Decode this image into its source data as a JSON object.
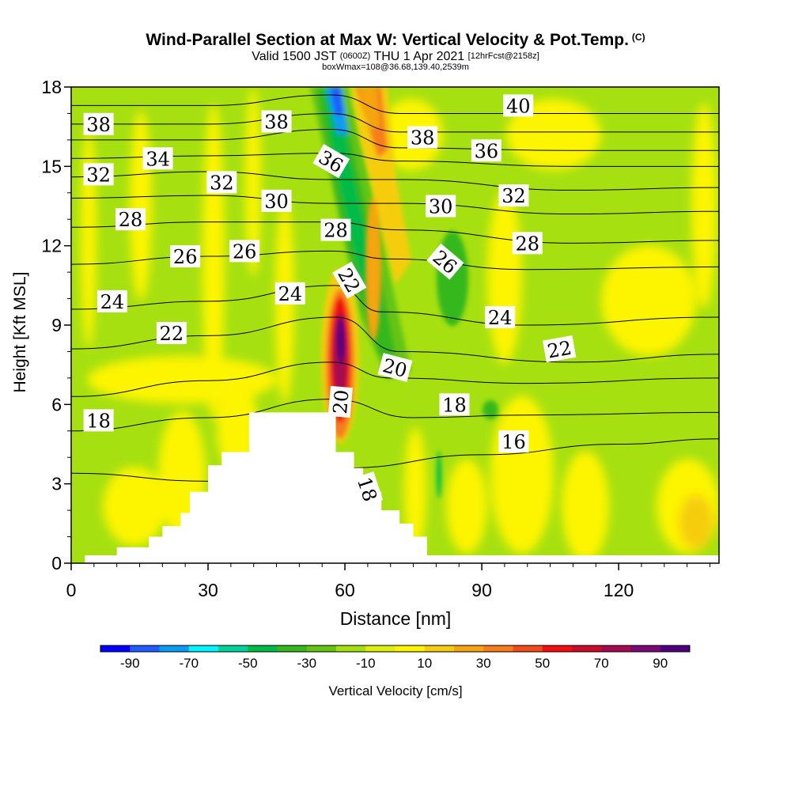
{
  "chart_data": {
    "type": "heatmap",
    "title": "Wind-Parallel Section at Max W: Vertical Velocity & Pot.Temp.",
    "title_mark": "(C)",
    "subtitle_prefix": "Valid 1500 JST",
    "subtitle_utc": "(0600Z)",
    "subtitle_day": "THU 1 Apr 2021",
    "subtitle_fcst": "[12hrFcst@2158z]",
    "subtitle_box": "boxWmax=108@36.68,139.40,2539m",
    "xlabel": "Distance [nm]",
    "ylabel": "Height [Kft MSL]",
    "xlim": [
      0,
      142
    ],
    "ylim": [
      0,
      18
    ],
    "x_ticks": [
      0,
      30,
      60,
      90,
      120
    ],
    "y_ticks": [
      0,
      3,
      6,
      9,
      12,
      15,
      18
    ],
    "colorbar": {
      "label": "Vertical Velocity [cm/s]",
      "tick_values": [
        -90,
        -70,
        -50,
        -30,
        -10,
        10,
        30,
        50,
        70,
        90
      ],
      "colors": [
        "#0000ff",
        "#1f5cff",
        "#0a9cf2",
        "#00f5ff",
        "#00d49a",
        "#00bb46",
        "#34b81e",
        "#64c414",
        "#a6e010",
        "#dfef0d",
        "#fdf400",
        "#f6cd0d",
        "#f5a510",
        "#f77d1b",
        "#f04b18",
        "#f00e0e",
        "#c90c2a",
        "#a40b4e",
        "#7a0876",
        "#4f007e"
      ]
    },
    "theta_contours_C": [
      {
        "value": 16,
        "points": [
          [
            0,
            3.4
          ],
          [
            30,
            3.1
          ],
          [
            60,
            3.6
          ],
          [
            90,
            4.1
          ],
          [
            120,
            4.5
          ],
          [
            142,
            4.7
          ]
        ]
      },
      {
        "value": 18,
        "points": [
          [
            0,
            5.0
          ],
          [
            30,
            5.5
          ],
          [
            57,
            6.2
          ],
          [
            75,
            5.5
          ],
          [
            100,
            5.6
          ],
          [
            142,
            5.7
          ]
        ]
      },
      {
        "value": 20,
        "points": [
          [
            0,
            6.3
          ],
          [
            30,
            6.9
          ],
          [
            57,
            7.6
          ],
          [
            70,
            7.0
          ],
          [
            100,
            6.8
          ],
          [
            142,
            7.0
          ]
        ]
      },
      {
        "value": 22,
        "points": [
          [
            0,
            8.1
          ],
          [
            30,
            8.6
          ],
          [
            58,
            9.3
          ],
          [
            72,
            8.0
          ],
          [
            110,
            7.6
          ],
          [
            142,
            7.9
          ]
        ]
      },
      {
        "value": 24,
        "points": [
          [
            0,
            9.6
          ],
          [
            30,
            9.9
          ],
          [
            58,
            10.5
          ],
          [
            68,
            9.5
          ],
          [
            100,
            9.0
          ],
          [
            142,
            9.3
          ]
        ]
      },
      {
        "value": 26,
        "points": [
          [
            0,
            11.3
          ],
          [
            30,
            11.6
          ],
          [
            57,
            11.8
          ],
          [
            70,
            11.5
          ],
          [
            100,
            11.1
          ],
          [
            142,
            11.2
          ]
        ]
      },
      {
        "value": 28,
        "points": [
          [
            0,
            12.7
          ],
          [
            30,
            12.9
          ],
          [
            57,
            12.9
          ],
          [
            72,
            12.6
          ],
          [
            110,
            12.1
          ],
          [
            142,
            12.2
          ]
        ]
      },
      {
        "value": 30,
        "points": [
          [
            0,
            13.8
          ],
          [
            30,
            13.9
          ],
          [
            57,
            13.6
          ],
          [
            72,
            13.6
          ],
          [
            110,
            13.2
          ],
          [
            142,
            13.3
          ]
        ]
      },
      {
        "value": 32,
        "points": [
          [
            0,
            14.6
          ],
          [
            30,
            14.8
          ],
          [
            57,
            14.5
          ],
          [
            72,
            14.5
          ],
          [
            110,
            14.1
          ],
          [
            142,
            14.2
          ]
        ]
      },
      {
        "value": 34,
        "points": [
          [
            0,
            15.3
          ],
          [
            30,
            15.4
          ],
          [
            57,
            15.5
          ],
          [
            72,
            15.2
          ],
          [
            110,
            15.0
          ],
          [
            142,
            15.0
          ]
        ]
      },
      {
        "value": 36,
        "points": [
          [
            0,
            16.0
          ],
          [
            30,
            16.0
          ],
          [
            57,
            16.4
          ],
          [
            72,
            15.7
          ],
          [
            110,
            15.6
          ],
          [
            142,
            15.6
          ]
        ]
      },
      {
        "value": 38,
        "points": [
          [
            0,
            16.6
          ],
          [
            30,
            16.6
          ],
          [
            57,
            17.0
          ],
          [
            72,
            16.3
          ],
          [
            110,
            16.3
          ],
          [
            142,
            16.3
          ]
        ]
      },
      {
        "value": 40,
        "points": [
          [
            0,
            17.3
          ],
          [
            30,
            17.3
          ],
          [
            57,
            17.7
          ],
          [
            72,
            17.0
          ],
          [
            110,
            17.0
          ],
          [
            142,
            17.0
          ]
        ]
      }
    ],
    "contour_labels": [
      {
        "text": "38",
        "x": 6,
        "y": 16.6,
        "rot": 0
      },
      {
        "text": "32",
        "x": 6,
        "y": 14.7,
        "rot": 0
      },
      {
        "text": "34",
        "x": 19,
        "y": 15.3,
        "rot": 0
      },
      {
        "text": "28",
        "x": 13,
        "y": 13.0,
        "rot": 0
      },
      {
        "text": "38",
        "x": 45,
        "y": 16.7,
        "rot": 0
      },
      {
        "text": "36",
        "x": 57,
        "y": 15.2,
        "rot": 30
      },
      {
        "text": "32",
        "x": 33,
        "y": 14.4,
        "rot": 0
      },
      {
        "text": "30",
        "x": 45,
        "y": 13.7,
        "rot": 0
      },
      {
        "text": "28",
        "x": 58,
        "y": 12.6,
        "rot": 0
      },
      {
        "text": "26",
        "x": 25,
        "y": 11.6,
        "rot": 0
      },
      {
        "text": "26",
        "x": 38,
        "y": 11.8,
        "rot": 0
      },
      {
        "text": "24",
        "x": 9,
        "y": 9.9,
        "rot": 0
      },
      {
        "text": "24",
        "x": 48,
        "y": 10.2,
        "rot": 0
      },
      {
        "text": "22",
        "x": 61,
        "y": 10.7,
        "rot": 60
      },
      {
        "text": "22",
        "x": 22,
        "y": 8.7,
        "rot": 0
      },
      {
        "text": "20",
        "x": 71,
        "y": 7.4,
        "rot": 15
      },
      {
        "text": "20",
        "x": 59,
        "y": 6.1,
        "rot": -85
      },
      {
        "text": "18",
        "x": 6,
        "y": 5.4,
        "rot": 0
      },
      {
        "text": "18",
        "x": 84,
        "y": 6.0,
        "rot": 0
      },
      {
        "text": "16",
        "x": 97,
        "y": 4.6,
        "rot": 0
      },
      {
        "text": "18",
        "x": 65,
        "y": 2.8,
        "rot": 72
      },
      {
        "text": "40",
        "x": 98,
        "y": 17.3,
        "rot": 0
      },
      {
        "text": "38",
        "x": 77,
        "y": 16.1,
        "rot": 0
      },
      {
        "text": "36",
        "x": 91,
        "y": 15.6,
        "rot": 0
      },
      {
        "text": "32",
        "x": 97,
        "y": 13.9,
        "rot": 0
      },
      {
        "text": "30",
        "x": 81,
        "y": 13.5,
        "rot": 0
      },
      {
        "text": "28",
        "x": 100,
        "y": 12.1,
        "rot": 0
      },
      {
        "text": "26",
        "x": 82,
        "y": 11.4,
        "rot": 40
      },
      {
        "text": "24",
        "x": 94,
        "y": 9.3,
        "rot": 0
      },
      {
        "text": "22",
        "x": 107,
        "y": 8.1,
        "rot": -10
      }
    ],
    "terrain_profile_kft": [
      [
        0,
        0
      ],
      [
        3,
        0
      ],
      [
        3,
        0.3
      ],
      [
        10,
        0.3
      ],
      [
        10,
        0.6
      ],
      [
        17,
        0.6
      ],
      [
        17,
        1.0
      ],
      [
        20,
        1.0
      ],
      [
        20,
        1.4
      ],
      [
        24,
        1.4
      ],
      [
        24,
        1.9
      ],
      [
        26,
        1.9
      ],
      [
        26,
        2.7
      ],
      [
        30,
        2.7
      ],
      [
        30,
        3.7
      ],
      [
        33,
        3.7
      ],
      [
        33,
        4.2
      ],
      [
        39,
        4.2
      ],
      [
        39,
        5.7
      ],
      [
        58,
        5.7
      ],
      [
        58,
        4.2
      ],
      [
        62,
        4.2
      ],
      [
        62,
        3.6
      ],
      [
        64,
        3.6
      ],
      [
        64,
        2.7
      ],
      [
        68,
        2.7
      ],
      [
        68,
        2.0
      ],
      [
        72,
        2.0
      ],
      [
        72,
        1.5
      ],
      [
        75,
        1.5
      ],
      [
        75,
        1.0
      ],
      [
        78,
        1.0
      ],
      [
        78,
        0.3
      ],
      [
        142,
        0.3
      ],
      [
        142,
        0
      ]
    ]
  }
}
